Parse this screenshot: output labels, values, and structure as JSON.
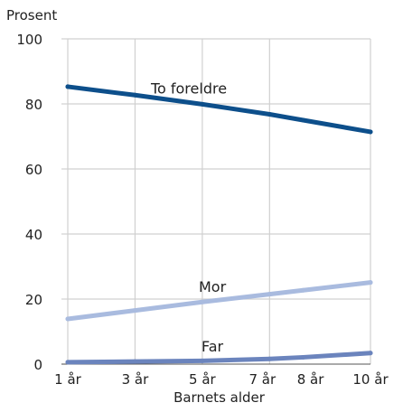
{
  "chart_data": {
    "type": "line",
    "ylabel": "Prosent",
    "xlabel": "Barnets alder",
    "ylim": [
      0,
      100
    ],
    "yticks": [
      0,
      20,
      40,
      60,
      80,
      100
    ],
    "xlim": [
      1,
      10
    ],
    "xticks": [
      {
        "value": 1,
        "label": "1 år"
      },
      {
        "value": 3,
        "label": "3 år"
      },
      {
        "value": 5,
        "label": "5 år"
      },
      {
        "value": 7,
        "label": "7 år"
      },
      {
        "value": 8,
        "label": "8 år"
      },
      {
        "value": 10,
        "label": "10 år"
      }
    ],
    "grid": true,
    "series": [
      {
        "name": "To foreldre",
        "color": "#0d4f8b",
        "x": [
          1,
          3,
          5,
          7,
          8,
          10
        ],
        "y": [
          85.3,
          82.7,
          79.9,
          76.8,
          75.0,
          71.4
        ]
      },
      {
        "name": "Mor",
        "color": "#a9bbdf",
        "x": [
          1,
          3,
          5,
          7,
          8,
          10
        ],
        "y": [
          13.9,
          16.5,
          19.1,
          21.5,
          22.7,
          25.1
        ]
      },
      {
        "name": "Far",
        "color": "#6b84bd",
        "x": [
          1,
          3,
          5,
          7,
          8,
          10
        ],
        "y": [
          0.6,
          0.8,
          1.0,
          1.6,
          2.1,
          3.4
        ]
      }
    ]
  }
}
